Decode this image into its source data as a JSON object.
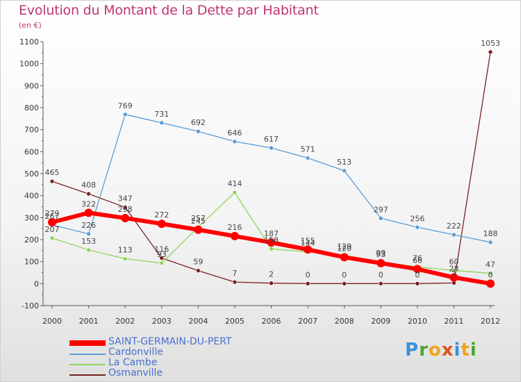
{
  "title": "Evolution du Montant de la Dette par Habitant",
  "unit_label": "(en €)",
  "logo": {
    "text": "Proxiti",
    "letters": [
      {
        "ch": "P",
        "color": "#3b8fd9"
      },
      {
        "ch": "r",
        "color": "#4aa834"
      },
      {
        "ch": "o",
        "color": "#f2a11f"
      },
      {
        "ch": "x",
        "color": "#e0531f"
      },
      {
        "ch": "i",
        "color": "#3b8fd9"
      },
      {
        "ch": "t",
        "color": "#f2a11f"
      },
      {
        "ch": "i",
        "color": "#4aa834"
      }
    ]
  },
  "chart_data": {
    "type": "line",
    "title": "Evolution du Montant de la Dette par Habitant",
    "ylabel": "(en €)",
    "xlabel": "",
    "x": [
      2000,
      2001,
      2002,
      2003,
      2004,
      2005,
      2006,
      2007,
      2008,
      2009,
      2010,
      2011,
      2012
    ],
    "ylim": [
      -100,
      1100
    ],
    "yticks": [
      -100,
      0,
      100,
      200,
      300,
      400,
      500,
      600,
      700,
      800,
      900,
      1000,
      1100
    ],
    "grid": false,
    "legend_position": "bottom-left",
    "series": [
      {
        "name": "SAINT-GERMAIN-DU-PERT",
        "color": "#ff0000",
        "width": 6,
        "values": [
          279,
          322,
          298,
          272,
          245,
          216,
          187,
          155,
          120,
          93,
          66,
          28,
          0
        ]
      },
      {
        "name": "Cardonville",
        "color": "#5b9bd5",
        "width": 1.3,
        "values": [
          267,
          226,
          769,
          731,
          692,
          646,
          617,
          571,
          513,
          297,
          256,
          222,
          188
        ]
      },
      {
        "name": "La Cambe",
        "color": "#8ed65a",
        "width": 1.3,
        "values": [
          207,
          153,
          113,
          93,
          257,
          414,
          158,
          144,
          129,
          99,
          76,
          60,
          47
        ]
      },
      {
        "name": "Osmanville",
        "color": "#7a2020",
        "width": 1.3,
        "values": [
          465,
          408,
          347,
          116,
          59,
          7,
          2,
          0,
          0,
          0,
          0,
          3,
          1053
        ]
      }
    ],
    "data_labels": [
      [
        "279",
        "322",
        "298",
        "272",
        "245",
        "216",
        "187",
        "155",
        "120",
        "93",
        "66",
        "28",
        "0"
      ],
      [
        "267",
        "226",
        "769",
        "731",
        "692",
        "646",
        "617",
        "571",
        "513",
        "297",
        "256",
        "222",
        "188"
      ],
      [
        "207",
        "153",
        "113",
        "93",
        "257",
        "414",
        "158",
        "144",
        "129",
        "99",
        "76",
        "60",
        "47"
      ],
      [
        "465",
        "408",
        "347",
        "116",
        "59",
        "7",
        "2",
        "0",
        "0",
        "0",
        "0",
        "3",
        "1053"
      ]
    ]
  }
}
